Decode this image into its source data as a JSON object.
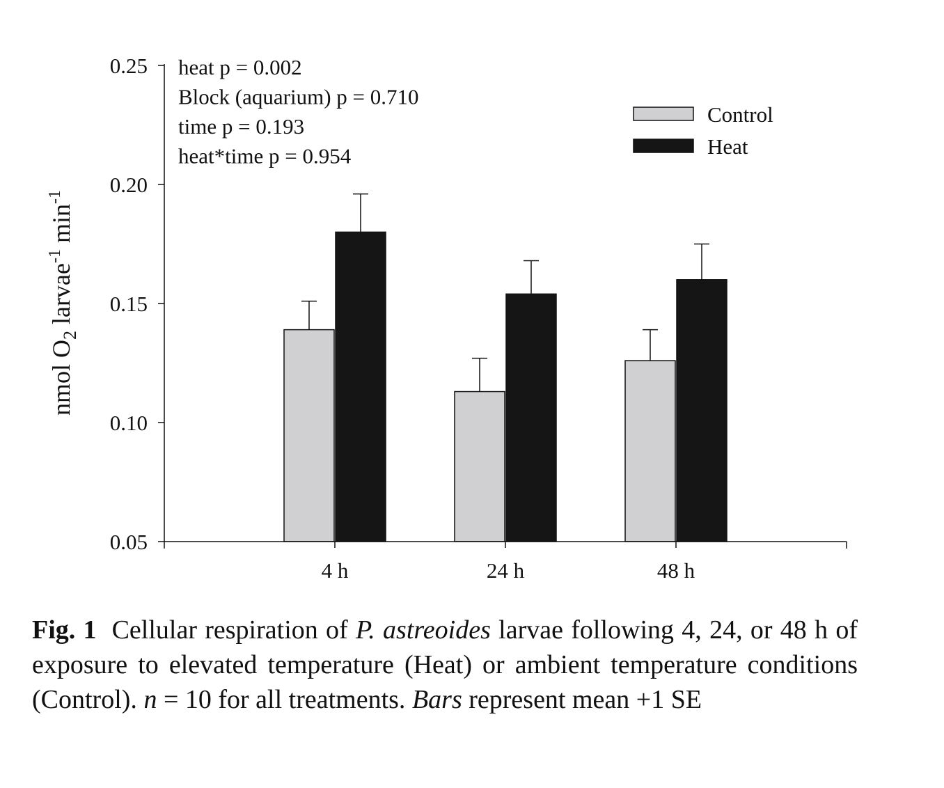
{
  "chart_data": {
    "type": "bar",
    "categories": [
      "4 h",
      "24 h",
      "48 h"
    ],
    "series": [
      {
        "name": "Control",
        "color": "#d0d0d2",
        "values": [
          0.139,
          0.113,
          0.126
        ],
        "se": [
          0.012,
          0.014,
          0.013
        ]
      },
      {
        "name": "Heat",
        "color": "#151515",
        "values": [
          0.18,
          0.154,
          0.16
        ],
        "se": [
          0.016,
          0.014,
          0.015
        ]
      }
    ],
    "ylabel": {
      "main": "nmol O",
      "sub": "2",
      "mid": " larvae",
      "sup1": "-1",
      "end": " min",
      "sup2": "-1"
    },
    "ylim": [
      0.05,
      0.25
    ],
    "yticks": [
      "0.05",
      "0.10",
      "0.15",
      "0.20",
      "0.25"
    ],
    "grid": false,
    "legend_position": "top-right",
    "annotations": [
      "heat p = 0.002",
      "Block (aquarium) p = 0.710",
      "time p = 0.193",
      "heat*time p = 0.954"
    ]
  },
  "caption": {
    "label": "Fig. 1",
    "t1": "Cellular respiration of ",
    "species": "P. astreoides",
    "t2": " larvae following 4, 24, or 48 h of exposure to elevated temperature (Heat) or ambient temper­ature conditions (Control). ",
    "n_var": "n",
    "t3": " = 10 for all treatments. ",
    "bars_word": "Bars",
    "t4": " represent mean +1 SE"
  }
}
